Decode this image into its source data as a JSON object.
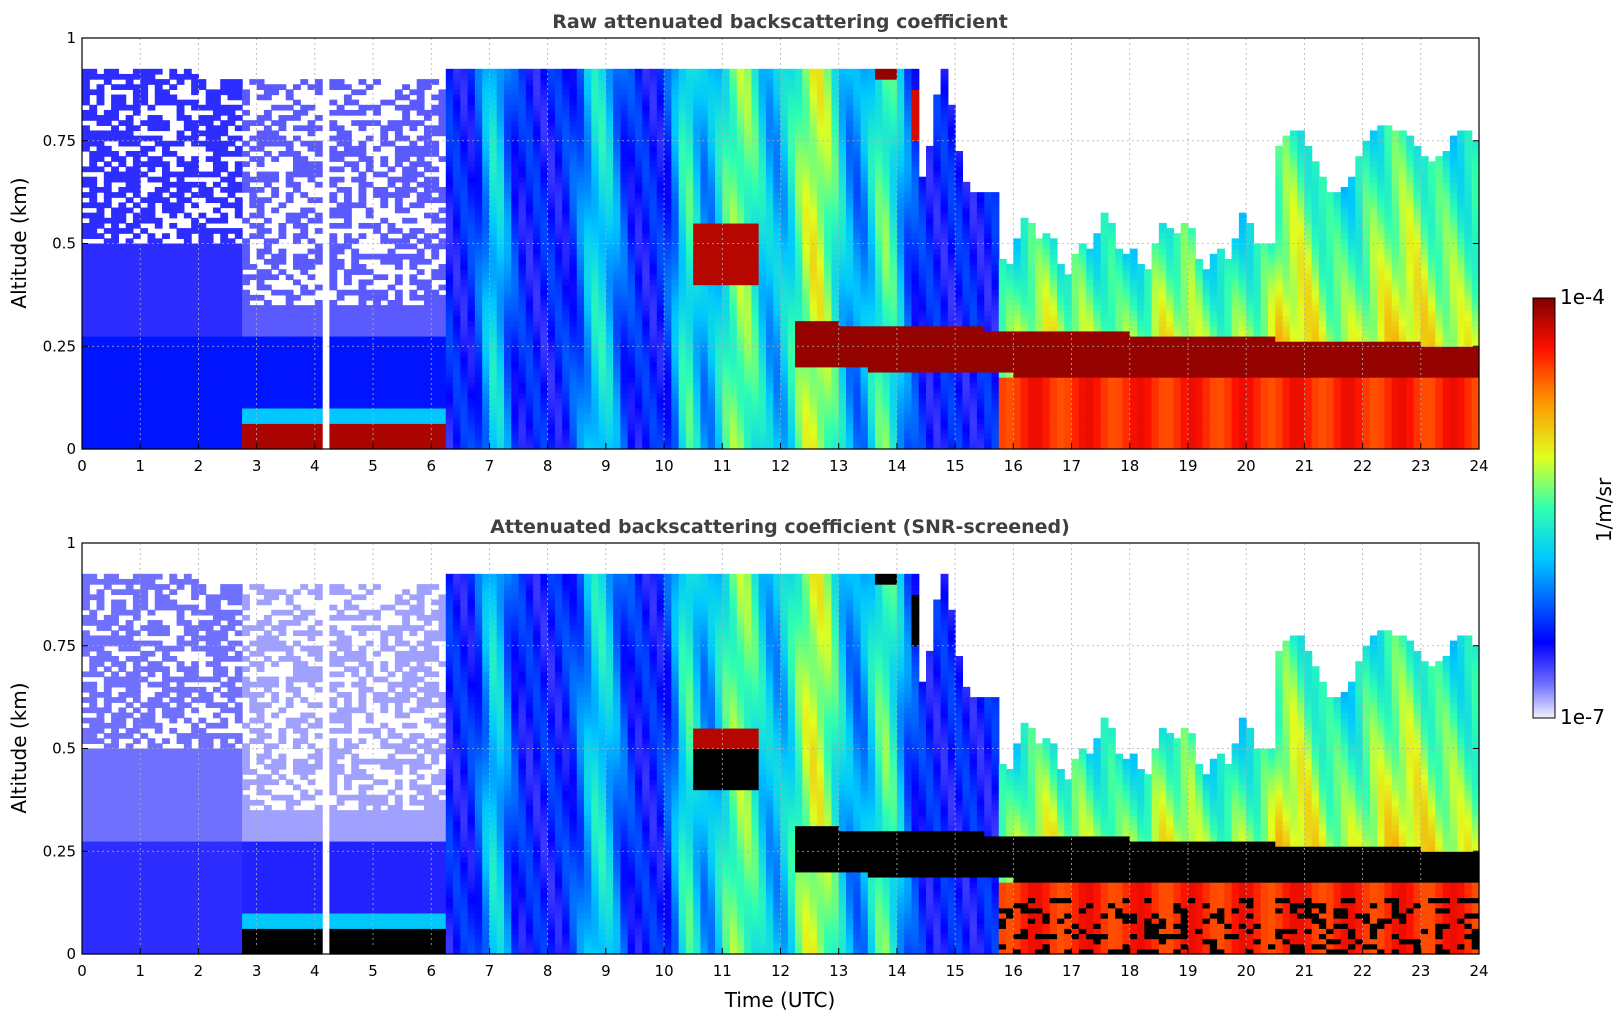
{
  "figure": {
    "colorbar": {
      "max_label": "1e-4",
      "min_label": "1e-7",
      "unit_label": "1/m/sr",
      "colormap": "jet",
      "scale": "log"
    }
  },
  "chart_data": [
    {
      "type": "heatmap",
      "title": "Raw attenuated backscattering coefficient",
      "xlabel": "",
      "ylabel": "Altitude (km)",
      "xlim": [
        0,
        24
      ],
      "ylim": [
        0,
        1
      ],
      "x_ticks": [
        "0",
        "1",
        "2",
        "3",
        "4",
        "5",
        "6",
        "7",
        "8",
        "9",
        "10",
        "11",
        "12",
        "13",
        "14",
        "15",
        "16",
        "17",
        "18",
        "19",
        "20",
        "21",
        "22",
        "23",
        "24"
      ],
      "y_ticks": [
        "0",
        "0.25",
        "0.5",
        "0.75",
        "1"
      ],
      "grid": true,
      "value_range": [
        1e-07,
        0.0001
      ],
      "features": [
        {
          "description": "aerosol/surface layer",
          "time": [
            2.7,
            6.0
          ],
          "altitude": [
            0.0,
            0.06
          ],
          "level": 0.95
        },
        {
          "description": "dense cloud layer",
          "time": [
            12.2,
            23.9
          ],
          "altitude": [
            0.18,
            0.3
          ],
          "level": 1.0
        },
        {
          "description": "elevated cloud",
          "time": [
            10.5,
            11.6
          ],
          "altitude": [
            0.4,
            0.55
          ],
          "level": 0.95
        },
        {
          "description": "boundary layer backscatter",
          "time": [
            15.8,
            23.9
          ],
          "altitude": [
            0.0,
            0.5
          ],
          "level": 0.75
        },
        {
          "description": "data gap",
          "time": [
            4.15,
            4.25
          ],
          "altitude": [
            0.0,
            1.0
          ],
          "level": null
        }
      ]
    },
    {
      "type": "heatmap",
      "title": "Attenuated backscattering coefficient (SNR-screened)",
      "xlabel": "Time (UTC)",
      "ylabel": "Altitude (km)",
      "xlim": [
        0,
        24
      ],
      "ylim": [
        0,
        1
      ],
      "x_ticks": [
        "0",
        "1",
        "2",
        "3",
        "4",
        "5",
        "6",
        "7",
        "8",
        "9",
        "10",
        "11",
        "12",
        "13",
        "14",
        "15",
        "16",
        "17",
        "18",
        "19",
        "20",
        "21",
        "22",
        "23",
        "24"
      ],
      "y_ticks": [
        "0",
        "0.25",
        "0.5",
        "0.75",
        "1"
      ],
      "grid": true,
      "value_range": [
        1e-07,
        0.0001
      ],
      "features": [
        {
          "description": "screened (black) surface layer",
          "time": [
            2.7,
            6.0
          ],
          "altitude": [
            0.0,
            0.06
          ],
          "level": null
        },
        {
          "description": "screened (black) cloud layer",
          "time": [
            12.2,
            23.9
          ],
          "altitude": [
            0.18,
            0.3
          ],
          "level": null
        },
        {
          "description": "screened (black) elevated cloud",
          "time": [
            10.6,
            11.6
          ],
          "altitude": [
            0.4,
            0.5
          ],
          "level": null
        },
        {
          "description": "boundary layer backscatter",
          "time": [
            15.8,
            23.9
          ],
          "altitude": [
            0.0,
            0.5
          ],
          "level": 0.75
        }
      ]
    }
  ]
}
